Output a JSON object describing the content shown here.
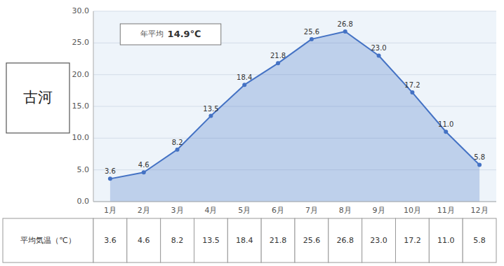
{
  "chart_data": {
    "type": "area",
    "title": "古河",
    "categories": [
      "1月",
      "2月",
      "3月",
      "4月",
      "5月",
      "6月",
      "7月",
      "8月",
      "9月",
      "10月",
      "11月",
      "12月"
    ],
    "values": [
      3.6,
      4.6,
      8.2,
      13.5,
      18.4,
      21.8,
      25.6,
      26.8,
      23.0,
      17.2,
      11.0,
      5.8
    ],
    "value_labels": [
      "3.6",
      "4.6",
      "8.2",
      "13.5",
      "18.4",
      "21.8",
      "25.6",
      "26.8",
      "23.0",
      "17.2",
      "11.0",
      "5.8"
    ],
    "color": "#4472C4",
    "ylim": [
      0.0,
      30.0
    ],
    "yticks": [
      {
        "value": 0.0,
        "label": "0.0"
      },
      {
        "value": 5.0,
        "label": "5.0"
      },
      {
        "value": 10.0,
        "label": "10.0"
      },
      {
        "value": 15.0,
        "label": "15.0"
      },
      {
        "value": 20.0,
        "label": "20.0"
      },
      {
        "value": 25.0,
        "label": "25.0"
      },
      {
        "value": 30.0,
        "label": "30.0"
      }
    ],
    "grid": true,
    "data_labels": true,
    "marker": "circle",
    "annotations": [
      "年平均",
      "14.9℃"
    ],
    "table_label": "平均気温（℃）"
  }
}
